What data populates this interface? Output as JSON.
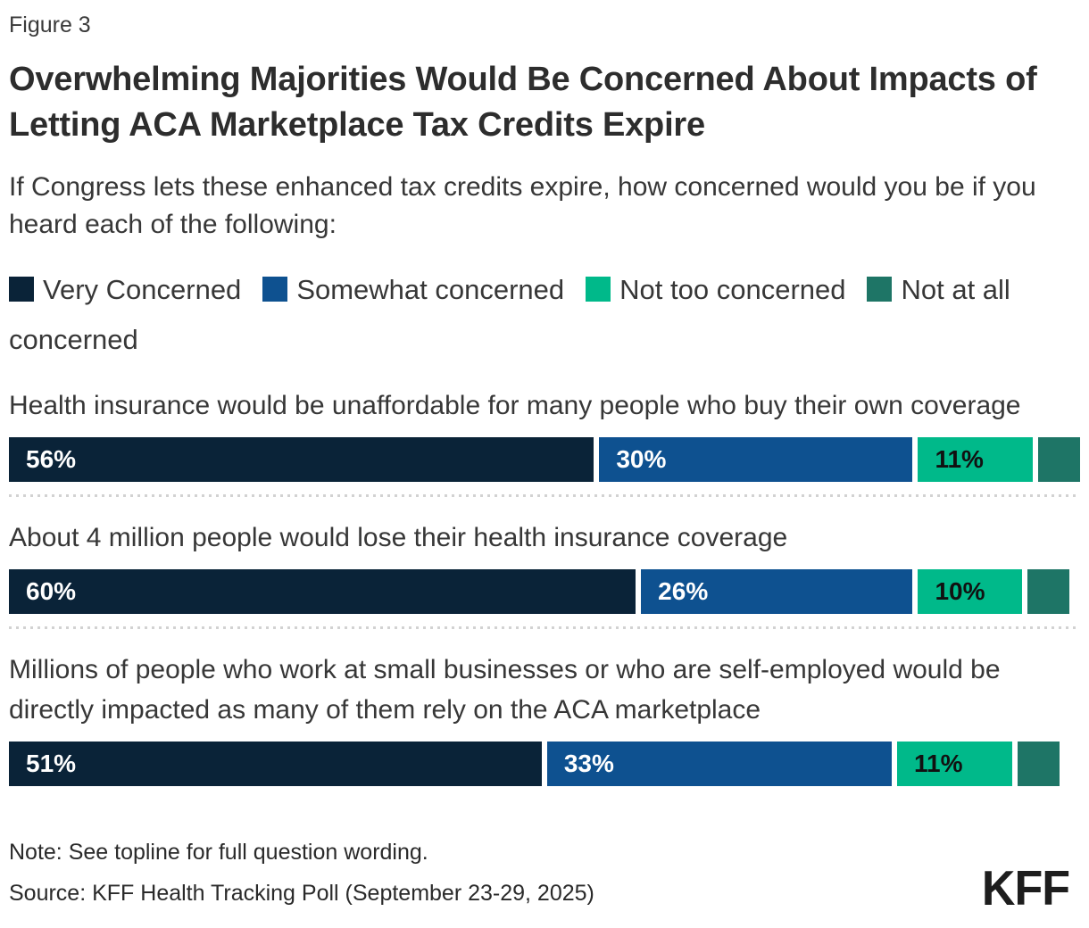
{
  "figure_label": "Figure 3",
  "title": "Overwhelming Majorities Would Be Concerned About Impacts of Letting ACA Marketplace Tax Credits Expire",
  "subtitle": "If Congress lets these enhanced tax credits expire, how concerned would you be if you heard each of the following:",
  "note": "Note: See topline for full question wording.",
  "source": "Source: KFF Health Tracking Poll (September 23-29, 2025)",
  "logo_text": "KFF",
  "chart_data": {
    "type": "bar",
    "orientation": "horizontal-stacked",
    "value_unit": "percent",
    "label_min_value_shown": 10,
    "legend_position": "top",
    "series": [
      {
        "name": "Very Concerned",
        "color": "#0a2338",
        "label_color": "#ffffff"
      },
      {
        "name": "Somewhat concerned",
        "color": "#0e5190",
        "label_color": "#ffffff"
      },
      {
        "name": "Not too concerned",
        "color": "#00b98a",
        "label_color": "#111111"
      },
      {
        "name": "Not at all concerned",
        "color": "#1e7566",
        "label_color": "#111111"
      }
    ],
    "rows": [
      {
        "label": "Health insurance would be unaffordable for many people who buy their own coverage",
        "values": [
          56,
          30,
          11,
          4
        ]
      },
      {
        "label": "About 4 million people would lose their health insurance coverage",
        "values": [
          60,
          26,
          10,
          4
        ]
      },
      {
        "label": "Millions of people who work at small businesses or who are self-employed would be directly impacted as many of them rely on the ACA marketplace",
        "values": [
          51,
          33,
          11,
          4
        ]
      }
    ]
  }
}
